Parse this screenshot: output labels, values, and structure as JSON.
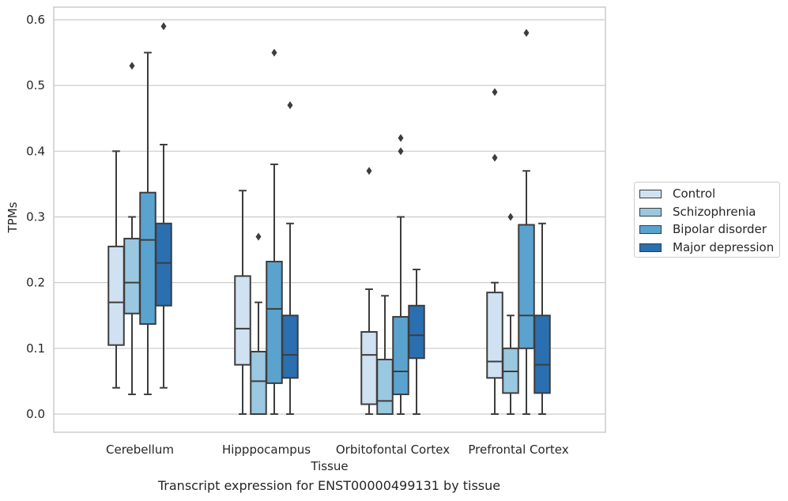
{
  "chart_data": {
    "type": "boxplot",
    "xlabel": "Tissue",
    "ylabel": "TPMs",
    "ylim": [
      -0.03,
      0.62
    ],
    "yticks": [
      0.0,
      0.1,
      0.2,
      0.3,
      0.4,
      0.5,
      0.6
    ],
    "ytick_labels": [
      "0.0",
      "0.1",
      "0.2",
      "0.3",
      "0.4",
      "0.5",
      "0.6"
    ],
    "grid": "horizontal",
    "legend_position": "right",
    "categories": [
      "Cerebellum",
      "Hipppocampus",
      "Orbitofontal Cortex",
      "Prefrontal Cortex"
    ],
    "series": [
      {
        "name": "Control",
        "color": "#d0e2f2",
        "boxes": [
          {
            "whislo": 0.04,
            "q1": 0.105,
            "med": 0.17,
            "q3": 0.255,
            "whishi": 0.4,
            "fliers": []
          },
          {
            "whislo": 0.0,
            "q1": 0.075,
            "med": 0.13,
            "q3": 0.21,
            "whishi": 0.34,
            "fliers": []
          },
          {
            "whislo": 0.0,
            "q1": 0.015,
            "med": 0.09,
            "q3": 0.125,
            "whishi": 0.19,
            "fliers": [
              0.37
            ]
          },
          {
            "whislo": 0.0,
            "q1": 0.055,
            "med": 0.08,
            "q3": 0.185,
            "whishi": 0.2,
            "fliers": [
              0.39,
              0.49
            ]
          }
        ]
      },
      {
        "name": "Schizophrenia",
        "color": "#9ac8e0",
        "boxes": [
          {
            "whislo": 0.03,
            "q1": 0.153,
            "med": 0.2,
            "q3": 0.267,
            "whishi": 0.3,
            "fliers": [
              0.53
            ]
          },
          {
            "whislo": 0.0,
            "q1": 0.0,
            "med": 0.05,
            "q3": 0.095,
            "whishi": 0.17,
            "fliers": [
              0.27
            ]
          },
          {
            "whislo": 0.0,
            "q1": 0.0,
            "med": 0.02,
            "q3": 0.083,
            "whishi": 0.18,
            "fliers": []
          },
          {
            "whislo": 0.0,
            "q1": 0.032,
            "med": 0.065,
            "q3": 0.1,
            "whishi": 0.15,
            "fliers": [
              0.3
            ]
          }
        ]
      },
      {
        "name": "Bipolar disorder",
        "color": "#5ba3cf",
        "boxes": [
          {
            "whislo": 0.03,
            "q1": 0.137,
            "med": 0.265,
            "q3": 0.337,
            "whishi": 0.55,
            "fliers": []
          },
          {
            "whislo": 0.0,
            "q1": 0.047,
            "med": 0.16,
            "q3": 0.232,
            "whishi": 0.38,
            "fliers": [
              0.55
            ]
          },
          {
            "whislo": 0.0,
            "q1": 0.03,
            "med": 0.065,
            "q3": 0.148,
            "whishi": 0.3,
            "fliers": [
              0.4,
              0.42
            ]
          },
          {
            "whislo": 0.0,
            "q1": 0.1,
            "med": 0.15,
            "q3": 0.288,
            "whishi": 0.37,
            "fliers": [
              0.58
            ]
          }
        ]
      },
      {
        "name": "Major depression",
        "color": "#2a6fb0",
        "boxes": [
          {
            "whislo": 0.04,
            "q1": 0.165,
            "med": 0.23,
            "q3": 0.29,
            "whishi": 0.41,
            "fliers": [
              0.59
            ]
          },
          {
            "whislo": 0.0,
            "q1": 0.055,
            "med": 0.09,
            "q3": 0.15,
            "whishi": 0.29,
            "fliers": [
              0.47
            ]
          },
          {
            "whislo": 0.0,
            "q1": 0.085,
            "med": 0.12,
            "q3": 0.165,
            "whishi": 0.22,
            "fliers": []
          },
          {
            "whislo": 0.0,
            "q1": 0.032,
            "med": 0.075,
            "q3": 0.15,
            "whishi": 0.29,
            "fliers": []
          }
        ]
      }
    ]
  },
  "caption": "Transcript expression for ENST00000499131 by tissue"
}
